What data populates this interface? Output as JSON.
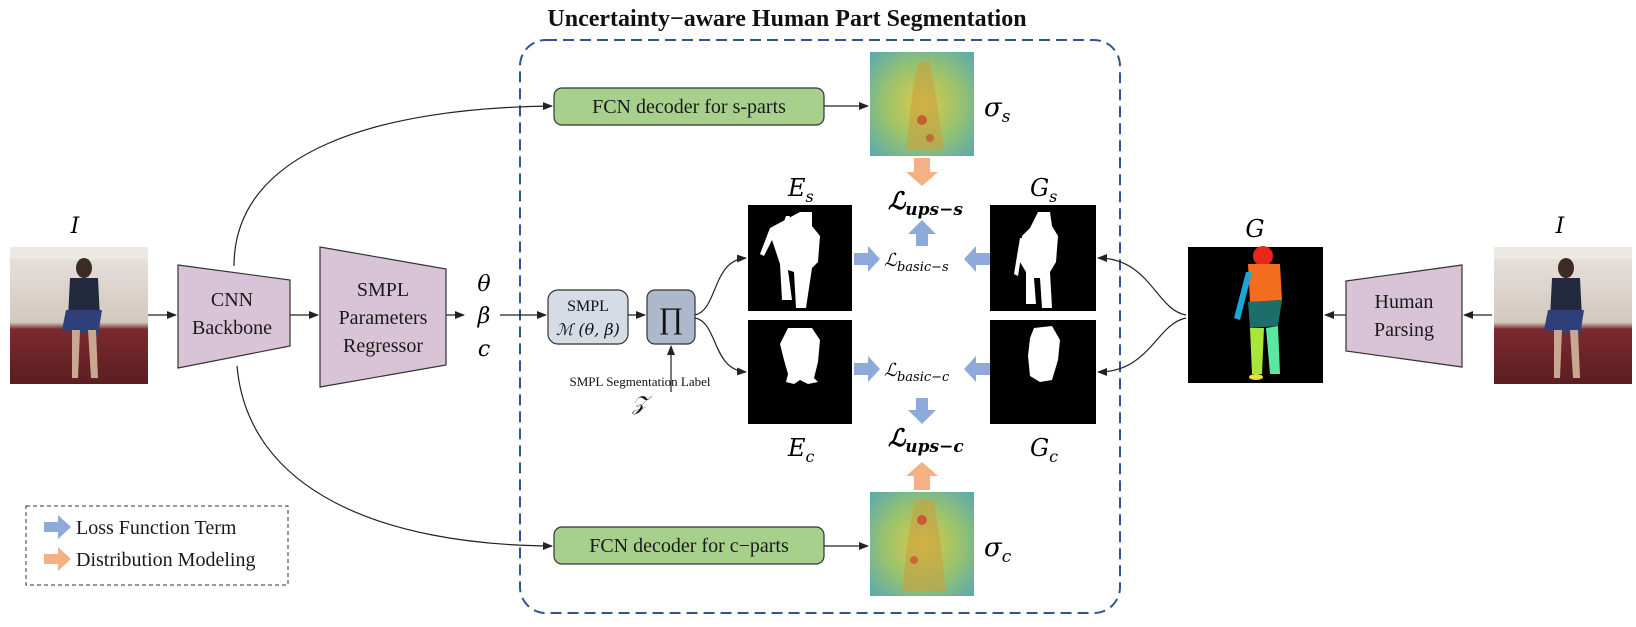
{
  "title": "Uncertainty−aware Human Part Segmentation",
  "input_symbol": "I",
  "backbone": {
    "line1": "CNN",
    "line2": "Backbone"
  },
  "regressor": {
    "line1": "SMPL",
    "line2": "Parameters",
    "line3": "Regressor"
  },
  "params": {
    "theta": "θ",
    "beta": "β",
    "c": "c"
  },
  "smpl_box": {
    "line1": "SMPL",
    "line2": "ℳ (θ, β)"
  },
  "proj_symbol": "∏",
  "seg_label": {
    "text": "SMPL Segmentation Label",
    "symbol": "𝒵"
  },
  "decoders": {
    "s": "FCN decoder for s-parts",
    "c": "FCN decoder for c−parts"
  },
  "sigma": {
    "s": "σ",
    "s_sub": "s",
    "c": "σ",
    "c_sub": "c"
  },
  "estimates": {
    "E": "E",
    "s_sub": "s",
    "c_sub": "c"
  },
  "ground_truth": {
    "G": "G",
    "s_sub": "s",
    "c_sub": "c"
  },
  "losses": {
    "ups_s": "ℒ",
    "ups_s_sub": "ups−s",
    "ups_c": "ℒ",
    "ups_c_sub": "ups−c",
    "basic_s": "ℒ",
    "basic_s_sub": "basic−s",
    "basic_c": "ℒ",
    "basic_c_sub": "basic−c"
  },
  "parsing": {
    "symbol": "G",
    "line1": "Human",
    "line2": "Parsing"
  },
  "legend": {
    "loss": "Loss Function Term",
    "dist": "Distribution Modeling"
  },
  "colors": {
    "green_box": "#a8d08d",
    "purple_box": "#d9c3d6",
    "smpl_box": "#d6dce5",
    "proj_box": "#adb9ca",
    "blue_arrow": "#8eaadb",
    "orange_arrow": "#f4b183",
    "dash_border": "#2f5597"
  }
}
